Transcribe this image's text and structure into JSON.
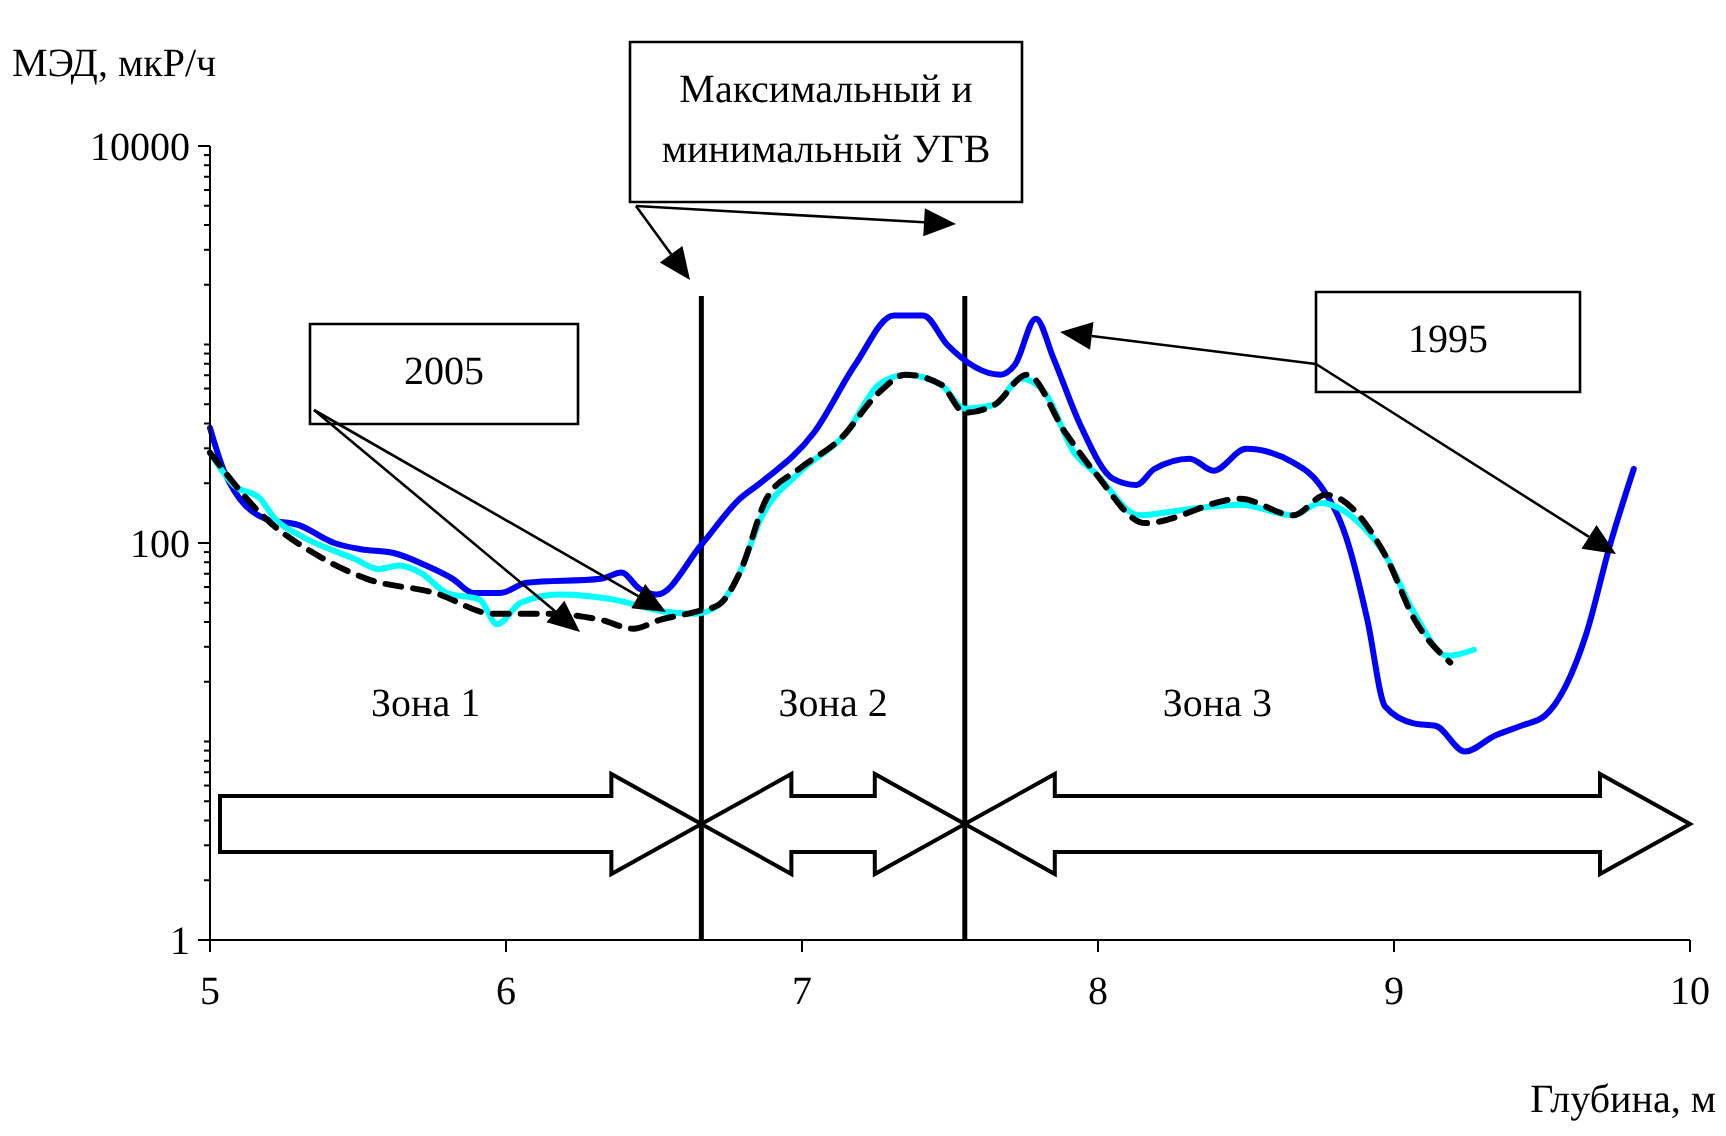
{
  "chart_data": {
    "type": "line",
    "xlabel": "Глубина, м",
    "ylabel": "МЭД, мкР/ч",
    "log": "y",
    "grid": false,
    "marker": "none",
    "xlim": [
      5,
      10
    ],
    "xticks": [
      5,
      6,
      7,
      8,
      9,
      10
    ],
    "ylim": [
      1,
      10000
    ],
    "yticks": [
      1,
      {
        "value": 2,
        "label": null
      },
      {
        "value": 3,
        "label": null
      },
      {
        "value": 4,
        "label": null
      },
      {
        "value": 5,
        "label": null
      },
      {
        "value": 6,
        "label": null
      },
      {
        "value": 7,
        "label": null
      },
      {
        "value": 8,
        "label": null
      },
      {
        "value": 9,
        "label": null
      },
      {
        "value": 10,
        "label": null
      },
      {
        "value": 20,
        "label": null
      },
      {
        "value": 30,
        "label": null
      },
      {
        "value": 40,
        "label": null
      },
      {
        "value": 50,
        "label": null
      },
      {
        "value": 60,
        "label": null
      },
      {
        "value": 70,
        "label": null
      },
      {
        "value": 80,
        "label": null
      },
      {
        "value": 90,
        "label": null
      },
      100,
      {
        "value": 200,
        "label": null
      },
      {
        "value": 300,
        "label": null
      },
      {
        "value": 400,
        "label": null
      },
      {
        "value": 500,
        "label": null
      },
      {
        "value": 600,
        "label": null
      },
      {
        "value": 700,
        "label": null
      },
      {
        "value": 800,
        "label": null
      },
      {
        "value": 900,
        "label": null
      },
      {
        "value": 1000,
        "label": null
      },
      {
        "value": 2000,
        "label": null
      },
      {
        "value": 3000,
        "label": null
      },
      {
        "value": 4000,
        "label": null
      },
      {
        "value": 5000,
        "label": null
      },
      {
        "value": 6000,
        "label": null
      },
      {
        "value": 7000,
        "label": null
      },
      {
        "value": 8000,
        "label": null
      },
      {
        "value": 9000,
        "label": null
      },
      10000
    ],
    "series": [
      {
        "color": "#0000ff",
        "line_style": "solid",
        "x": [
          5.0,
          5.05,
          5.19,
          5.3,
          5.42,
          5.51,
          5.62,
          5.73,
          5.82,
          5.89,
          5.98,
          6.07,
          6.32,
          6.39,
          6.45,
          6.51,
          6.66,
          6.79,
          6.86,
          7.04,
          7.18,
          7.31,
          7.41,
          7.49,
          7.67,
          7.72,
          7.79,
          7.85,
          7.94,
          8.05,
          8.13,
          8.19,
          8.31,
          8.39,
          8.5,
          8.66,
          8.75,
          8.84,
          8.91,
          8.97,
          9.07,
          9.14,
          9.24,
          9.34,
          9.43,
          9.51,
          9.58,
          9.65,
          9.73,
          9.81
        ],
        "values": [
          380,
          226,
          132,
          123,
          100,
          93,
          89,
          77,
          66,
          56,
          56,
          63,
          66,
          71,
          59,
          55,
          98,
          167,
          201,
          359,
          793,
          1400,
          1400,
          1000,
          705,
          793,
          1350,
          849,
          394,
          211,
          196,
          236,
          266,
          231,
          298,
          254,
          196,
          105,
          41,
          15,
          12.3,
          12,
          8.9,
          10.7,
          12,
          13.5,
          19,
          35,
          98,
          236
        ]
      },
      {
        "color": "#00ffff",
        "line_style": "solid",
        "x": [
          5.0,
          5.08,
          5.17,
          5.22,
          5.3,
          5.49,
          5.57,
          5.64,
          5.71,
          5.8,
          5.91,
          5.97,
          6.05,
          6.18,
          6.36,
          6.54,
          6.64,
          6.72,
          6.79,
          6.86,
          6.99,
          7.15,
          7.26,
          7.35,
          7.47,
          7.55,
          7.65,
          7.74,
          7.82,
          7.92,
          7.99,
          8.14,
          8.32,
          8.48,
          8.66,
          8.75,
          8.89,
          8.97,
          9.07,
          9.18,
          9.27
        ],
        "values": [
          285,
          196,
          167,
          132,
          110,
          83,
          74,
          77,
          71,
          56,
          52,
          39,
          50,
          55,
          52,
          45,
          44,
          49,
          71,
          132,
          226,
          359,
          628,
          705,
          628,
          475,
          497,
          674,
          573,
          285,
          226,
          138,
          149,
          156,
          138,
          159,
          123,
          87,
          44,
          27,
          29
        ]
      },
      {
        "color": "#000000",
        "line_style": "dashed",
        "x": [
          5.0,
          5.19,
          5.35,
          5.53,
          5.76,
          5.96,
          6.14,
          6.32,
          6.43,
          6.52,
          6.64,
          6.72,
          6.79,
          6.88,
          6.99,
          7.13,
          7.26,
          7.35,
          7.47,
          7.55,
          7.65,
          7.76,
          7.89,
          7.99,
          8.16,
          8.48,
          8.66,
          8.77,
          8.97,
          9.07,
          9.19
        ],
        "values": [
          285,
          132,
          89,
          66,
          56,
          44,
          44,
          41,
          37,
          41,
          45,
          49,
          71,
          167,
          236,
          335,
          573,
          705,
          628,
          454,
          497,
          705,
          359,
          226,
          126,
          167,
          138,
          175,
          87,
          41,
          25
        ]
      }
    ],
    "ref_lines": [
      {
        "axis": "x",
        "value": 6.66,
        "color": "#000000"
      },
      {
        "axis": "x",
        "value": 7.55,
        "color": "#000000"
      }
    ],
    "annotations": [
      "Максимальный и минимальный УГВ",
      "2005",
      "1995",
      "Зона 1",
      "Зона 2",
      "Зона 3"
    ]
  }
}
